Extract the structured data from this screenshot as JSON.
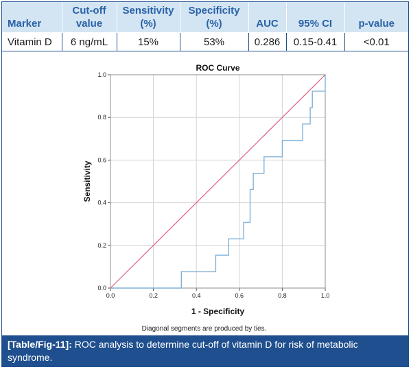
{
  "table": {
    "headers": [
      "Marker",
      "Cut-off value",
      "Sensitivity (%)",
      "Specificity (%)",
      "AUC",
      "95% CI",
      "p-value"
    ],
    "row": [
      "Vitamin D",
      "6 ng/mL",
      "15%",
      "53%",
      "0.286",
      "0.15-0.41",
      "<0.01"
    ]
  },
  "chart_data": {
    "type": "line",
    "title": "ROC Curve",
    "xlabel": "1 - Specificity",
    "ylabel": "Sensitivity",
    "xlim": [
      0,
      1
    ],
    "ylim": [
      0,
      1
    ],
    "xticks": [
      "0.0",
      "0.2",
      "0.4",
      "0.6",
      "0.8",
      "1.0"
    ],
    "yticks": [
      "0.0",
      "0.2",
      "0.4",
      "0.6",
      "0.8",
      "1.0"
    ],
    "grid": true,
    "footnote": "Diagonal segments are produced by ties.",
    "series": [
      {
        "color": "#7fb0d8",
        "points": [
          [
            0,
            0
          ],
          [
            0.33,
            0
          ],
          [
            0.33,
            0.077
          ],
          [
            0.49,
            0.077
          ],
          [
            0.49,
            0.154
          ],
          [
            0.55,
            0.154
          ],
          [
            0.55,
            0.231
          ],
          [
            0.62,
            0.231
          ],
          [
            0.62,
            0.308
          ],
          [
            0.65,
            0.308
          ],
          [
            0.65,
            0.462
          ],
          [
            0.665,
            0.462
          ],
          [
            0.665,
            0.538
          ],
          [
            0.715,
            0.538
          ],
          [
            0.715,
            0.615
          ],
          [
            0.8,
            0.615
          ],
          [
            0.8,
            0.692
          ],
          [
            0.895,
            0.692
          ],
          [
            0.895,
            0.769
          ],
          [
            0.93,
            0.769
          ],
          [
            0.93,
            0.846
          ],
          [
            0.94,
            0.846
          ],
          [
            0.94,
            0.923
          ],
          [
            1,
            0.923
          ],
          [
            1,
            1
          ]
        ]
      },
      {
        "color": "#e0607e",
        "points": [
          [
            0,
            0
          ],
          [
            1,
            1
          ]
        ]
      }
    ]
  },
  "caption": {
    "label": "[Table/Fig-11]:",
    "text": "ROC analysis to determine cut-off of vitamin D for risk of metabolic syndrome."
  }
}
